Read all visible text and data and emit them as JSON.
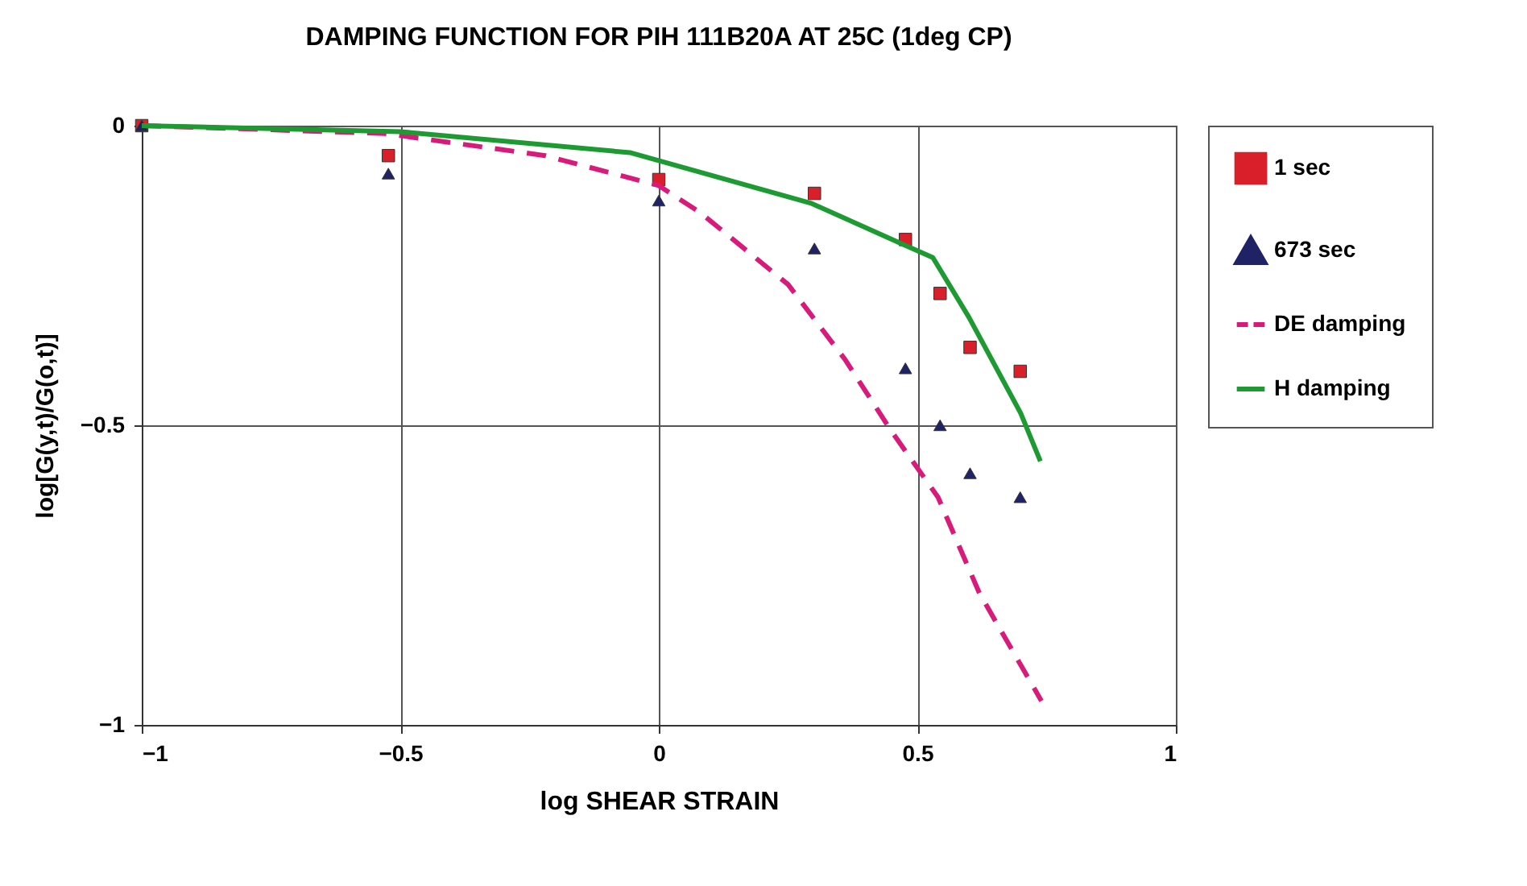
{
  "chart_data": {
    "type": "scatter",
    "title": "DAMPING FUNCTION FOR PIH 111B20A AT 25C (1deg CP)",
    "xlabel": "log SHEAR STRAIN",
    "ylabel": "log[G(y,t)/G(o,t)]",
    "xlim": [
      -1,
      1
    ],
    "xticks": [
      -1,
      -0.5,
      0,
      0.5,
      1
    ],
    "ylim": [
      -1,
      0
    ],
    "yticks": [
      -1,
      -0.5,
      0
    ],
    "grid": true,
    "legend": "right",
    "series": [
      {
        "name": "1 sec",
        "marker": "square",
        "color": "#d9202a",
        "x": [
          -1,
          -0.523,
          0,
          0.301,
          0.477,
          0.544,
          0.602,
          0.699
        ],
        "values": [
          0,
          -0.05,
          -0.09,
          -0.113,
          -0.19,
          -0.28,
          -0.37,
          -0.41
        ]
      },
      {
        "name": "673 sec",
        "marker": "triangle",
        "color": "#1f2366",
        "x": [
          -1,
          -0.523,
          0,
          0.301,
          0.477,
          0.544,
          0.602,
          0.699
        ],
        "values": [
          0,
          -0.08,
          -0.125,
          -0.205,
          -0.405,
          -0.5,
          -0.58,
          -0.62
        ]
      },
      {
        "name": "DE damping",
        "type": "line",
        "line_style": "dashed",
        "color": "#d81b7a",
        "x": [
          -1,
          -0.53,
          -0.22,
          0,
          0.08,
          0.25,
          0.36,
          0.45,
          0.54,
          0.62,
          0.74
        ],
        "values": [
          0,
          -0.013,
          -0.05,
          -0.1,
          -0.145,
          -0.265,
          -0.39,
          -0.51,
          -0.62,
          -0.78,
          -0.96
        ]
      },
      {
        "name": "H damping",
        "type": "line",
        "line_style": "solid",
        "color": "#1e9a32",
        "x": [
          -1,
          -0.5,
          -0.056,
          0.296,
          0.477,
          0.53,
          0.6,
          0.7,
          0.738
        ],
        "values": [
          0,
          -0.01,
          -0.045,
          -0.13,
          -0.2,
          -0.22,
          -0.32,
          -0.48,
          -0.56
        ]
      }
    ]
  }
}
